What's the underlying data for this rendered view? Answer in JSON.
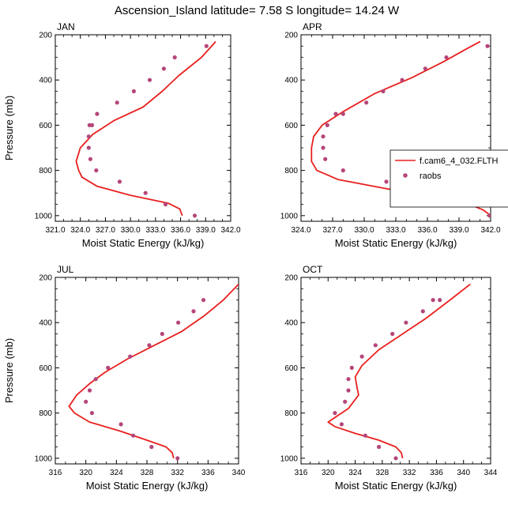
{
  "figure": {
    "title": "Ascension_Island  latitude= 7.58 S longitude= 14.24 W",
    "legend": {
      "placement": "right of APR panel",
      "entries": [
        {
          "name": "f.cam6_4_032.FLTH",
          "style": "line",
          "color": "#e8201e"
        },
        {
          "name": "raobs",
          "style": "marker",
          "color": "#b5467a"
        }
      ]
    }
  },
  "colors": {
    "model_line": "#e8201e",
    "raobs_marker": "#b5467a"
  },
  "chart_data": [
    {
      "type": "line",
      "title": "JAN",
      "xlabel": "Moist Static Energy (kJ/kg)",
      "ylabel": "Pressure (mb)",
      "xlim": [
        321,
        342
      ],
      "ylim": [
        1025,
        200
      ],
      "y_inverted": true,
      "grid": false,
      "x_ticks": [
        321,
        324,
        327,
        330,
        333,
        336,
        339,
        342
      ],
      "x_tick_labels": [
        "321.0",
        "324.0",
        "327.0",
        "330.0",
        "333.0",
        "336.0",
        "339.0",
        "342.0"
      ],
      "y_ticks": [
        200,
        400,
        600,
        800,
        1000
      ],
      "y_tick_labels": [
        "200",
        "400",
        "600",
        "800",
        "1000"
      ],
      "series": [
        {
          "name": "f.cam6_4_032.FLTH",
          "kind": "line",
          "x": [
            336.2,
            335.9,
            334.5,
            330.0,
            326.0,
            324.2,
            323.8,
            323.5,
            324.0,
            325.5,
            328.0,
            331.5,
            333.8,
            335.8,
            338.5,
            340.2
          ],
          "y": [
            1000,
            970,
            945,
            910,
            870,
            830,
            800,
            760,
            700,
            640,
            580,
            520,
            450,
            380,
            300,
            230
          ]
        },
        {
          "name": "raobs",
          "kind": "scatter",
          "x": [
            337.7,
            334.2,
            331.8,
            328.7,
            325.9,
            325.2,
            325.0,
            325.0,
            325.1,
            325.4,
            326.0,
            328.4,
            330.4,
            332.3,
            334.0,
            335.3,
            339.1
          ],
          "y": [
            1000,
            950,
            900,
            850,
            800,
            750,
            700,
            650,
            600,
            600,
            550,
            500,
            450,
            400,
            350,
            300,
            250
          ]
        }
      ]
    },
    {
      "type": "line",
      "title": "APR",
      "xlabel": "Moist Static Energy (kJ/kg)",
      "ylabel": "",
      "xlim": [
        324,
        342
      ],
      "ylim": [
        1025,
        200
      ],
      "y_inverted": true,
      "grid": false,
      "x_ticks": [
        324,
        327,
        330,
        333,
        336,
        339,
        342
      ],
      "x_tick_labels": [
        "324.0",
        "327.0",
        "330.0",
        "333.0",
        "336.0",
        "339.0",
        "342.0"
      ],
      "y_ticks": [
        200,
        400,
        600,
        800,
        1000
      ],
      "y_tick_labels": [
        "200",
        "400",
        "600",
        "800",
        "1000"
      ],
      "series": [
        {
          "name": "f.cam6_4_032.FLTH",
          "kind": "line",
          "x": [
            342.0,
            341.3,
            340.0,
            337.0,
            332.0,
            327.5,
            325.5,
            325.0,
            325.0,
            325.2,
            326.0,
            328.0,
            331.0,
            334.5,
            337.5,
            339.8,
            341.0
          ],
          "y": [
            1000,
            975,
            950,
            920,
            880,
            840,
            800,
            760,
            700,
            650,
            600,
            540,
            460,
            390,
            320,
            260,
            230
          ]
        },
        {
          "name": "raobs",
          "kind": "scatter",
          "x": [
            341.9,
            338.5,
            334.5,
            332.1,
            328.0,
            326.3,
            326.1,
            326.1,
            326.5,
            327.3,
            328.0,
            330.2,
            331.8,
            333.6,
            335.8,
            337.8,
            341.7
          ],
          "y": [
            1000,
            950,
            900,
            850,
            800,
            750,
            700,
            650,
            600,
            550,
            550,
            500,
            450,
            400,
            350,
            300,
            250
          ]
        }
      ]
    },
    {
      "type": "line",
      "title": "JUL",
      "xlabel": "Moist Static Energy (kJ/kg)",
      "ylabel": "Pressure (mb)",
      "xlim": [
        316,
        340
      ],
      "ylim": [
        1025,
        200
      ],
      "y_inverted": true,
      "grid": false,
      "x_ticks": [
        316,
        320,
        324,
        328,
        332,
        336,
        340
      ],
      "x_tick_labels": [
        "316",
        "320",
        "324",
        "328",
        "332",
        "336",
        "340"
      ],
      "y_ticks": [
        200,
        400,
        600,
        800,
        1000
      ],
      "y_tick_labels": [
        "200",
        "400",
        "600",
        "800",
        "1000"
      ],
      "series": [
        {
          "name": "f.cam6_4_032.FLTH",
          "kind": "line",
          "x": [
            331.5,
            331.3,
            330.5,
            328.0,
            324.5,
            320.5,
            318.5,
            317.8,
            318.8,
            320.5,
            322.5,
            325.5,
            329.0,
            332.5,
            335.5,
            338.0,
            340.0
          ],
          "y": [
            1000,
            975,
            950,
            920,
            880,
            840,
            800,
            770,
            720,
            670,
            620,
            560,
            500,
            440,
            370,
            300,
            230
          ]
        },
        {
          "name": "raobs",
          "kind": "scatter",
          "x": [
            332.0,
            328.6,
            326.2,
            324.6,
            320.8,
            320.0,
            320.5,
            321.3,
            322.9,
            325.8,
            328.3,
            330.0,
            332.1,
            334.1,
            335.4
          ],
          "y": [
            1000,
            950,
            900,
            850,
            800,
            750,
            700,
            650,
            600,
            550,
            500,
            450,
            400,
            350,
            300
          ]
        }
      ]
    },
    {
      "type": "line",
      "title": "OCT",
      "xlabel": "Moist Static Energy (kJ/kg)",
      "ylabel": "",
      "xlim": [
        316,
        344
      ],
      "ylim": [
        1025,
        200
      ],
      "y_inverted": true,
      "grid": false,
      "x_ticks": [
        316,
        320,
        324,
        328,
        332,
        336,
        340,
        344
      ],
      "x_tick_labels": [
        "316",
        "320",
        "324",
        "328",
        "332",
        "336",
        "340",
        "344"
      ],
      "y_ticks": [
        200,
        400,
        600,
        800,
        1000
      ],
      "y_tick_labels": [
        "200",
        "400",
        "600",
        "800",
        "1000"
      ],
      "series": [
        {
          "name": "f.cam6_4_032.FLTH",
          "kind": "line",
          "x": [
            331.0,
            330.8,
            330.0,
            327.5,
            324.0,
            321.0,
            320.0,
            321.5,
            323.0,
            324.5,
            324.3,
            324.0,
            325.0,
            327.5,
            331.0,
            334.5,
            338.0,
            341.0
          ],
          "y": [
            1000,
            975,
            950,
            920,
            890,
            860,
            840,
            810,
            780,
            720,
            690,
            640,
            590,
            520,
            450,
            380,
            300,
            230
          ]
        },
        {
          "name": "raobs",
          "kind": "scatter",
          "x": [
            330.0,
            327.5,
            325.5,
            322.0,
            321.0,
            322.5,
            323.0,
            323.0,
            323.5,
            325.0,
            327.0,
            329.5,
            331.5,
            334.0,
            335.5,
            336.5
          ],
          "y": [
            1000,
            950,
            900,
            850,
            800,
            750,
            700,
            650,
            600,
            550,
            500,
            450,
            400,
            350,
            300,
            300
          ]
        }
      ]
    }
  ]
}
